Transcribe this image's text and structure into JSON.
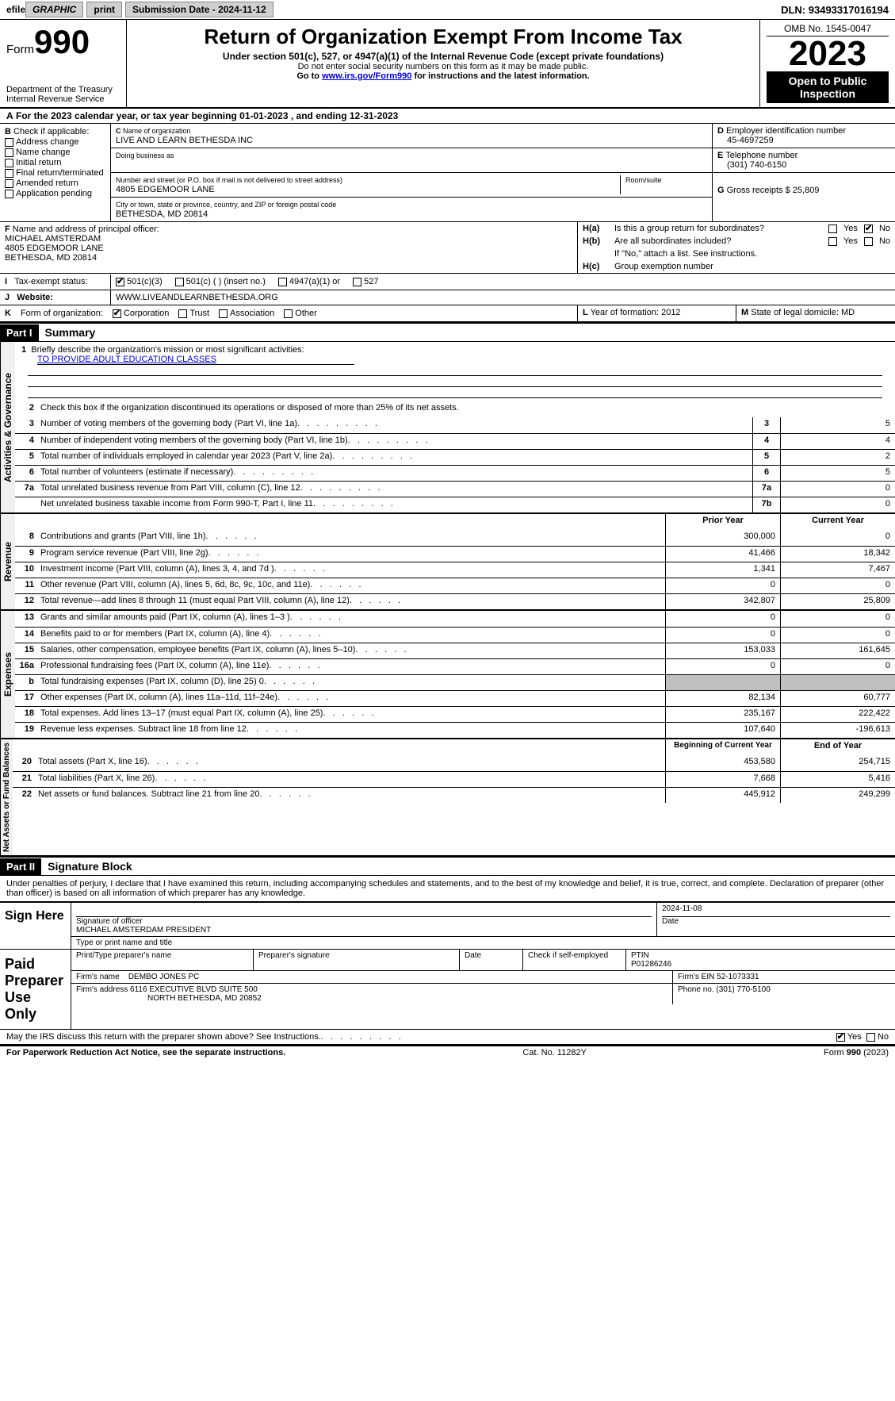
{
  "top": {
    "efile_prefix": "efile",
    "graphic_btn": "GRAPHIC",
    "print_btn": "print",
    "submission_label": "Submission Date - ",
    "submission_date": "2024-11-12",
    "dln_label": "DLN: ",
    "dln": "93493317016194"
  },
  "header": {
    "form_prefix": "Form",
    "form_number": "990",
    "dept": "Department of the Treasury\nInternal Revenue Service",
    "title": "Return of Organization Exempt From Income Tax",
    "subtitle": "Under section 501(c), 527, or 4947(a)(1) of the Internal Revenue Code (except private foundations)",
    "note1": "Do not enter social security numbers on this form as it may be made public.",
    "note2_pre": "Go to ",
    "note2_link": "www.irs.gov/Form990",
    "note2_post": " for instructions and the latest information.",
    "omb": "OMB No. 1545-0047",
    "year": "2023",
    "open_public": "Open to Public Inspection"
  },
  "line_a": {
    "text_pre": "For the 2023 calendar year, or tax year beginning ",
    "begin": "01-01-2023",
    "mid": "   , and ending ",
    "end": "12-31-2023"
  },
  "box_b": {
    "label": "Check if applicable:",
    "items": [
      "Address change",
      "Name change",
      "Initial return",
      "Final return/terminated",
      "Amended return",
      "Application pending"
    ],
    "prefix": "B"
  },
  "box_c": {
    "name_label": "Name of organization",
    "name": "LIVE AND LEARN BETHESDA INC",
    "dba_label": "Doing business as",
    "dba": "",
    "addr_label": "Number and street (or P.O. box if mail is not delivered to street address)",
    "addr": "4805 EDGEMOOR LANE",
    "room_label": "Room/suite",
    "room": "",
    "city_label": "City or town, state or province, country, and ZIP or foreign postal code",
    "city": "BETHESDA, MD  20814",
    "prefix": "C"
  },
  "box_d": {
    "label": "Employer identification number",
    "value": "45-4697259",
    "prefix": "D"
  },
  "box_e": {
    "label": "Telephone number",
    "value": "(301) 740-6150",
    "prefix": "E"
  },
  "box_g": {
    "label": "Gross receipts $",
    "value": "25,809",
    "prefix": "G"
  },
  "box_f": {
    "label": "Name and address of principal officer:",
    "name": "MICHAEL AMSTERDAM",
    "addr1": "4805 EDGEMOOR LANE",
    "addr2": "BETHESDA, MD  20814",
    "prefix": "F"
  },
  "box_h": {
    "a_label": "Is this a group return for subordinates?",
    "a_yes": false,
    "a_no": true,
    "b_label": "Are all subordinates included?",
    "b_yes": false,
    "b_no": false,
    "b_note": "If \"No,\" attach a list. See instructions.",
    "c_label": "Group exemption number",
    "c_value": ""
  },
  "box_i": {
    "label": "Tax-exempt status:",
    "opt_501c3": "501(c)(3)",
    "opt_501c": "501(c) (  ) (insert no.)",
    "opt_4947": "4947(a)(1) or",
    "opt_527": "527",
    "checked_501c3": true
  },
  "box_j": {
    "label": "Website:",
    "value": "WWW.LIVEANDLEARNBETHESDA.ORG"
  },
  "box_k": {
    "label": "Form of organization:",
    "corp": "Corporation",
    "trust": "Trust",
    "assoc": "Association",
    "other": "Other",
    "checked_corp": true
  },
  "box_l": {
    "label": "Year of formation:",
    "value": "2012"
  },
  "box_m": {
    "label": "State of legal domicile:",
    "value": "MD"
  },
  "part1": {
    "header": "Part I",
    "title": "Summary",
    "line1_label": "Briefly describe the organization's mission or most significant activities:",
    "line1_value": "TO PROVIDE ADULT EDUCATION CLASSES",
    "line2": "Check this box      if the organization discontinued its operations or disposed of more than 25% of its net assets.",
    "rows_gov": [
      {
        "n": "3",
        "t": "Number of voting members of the governing body (Part VI, line 1a)",
        "box": "3",
        "v": "5"
      },
      {
        "n": "4",
        "t": "Number of independent voting members of the governing body (Part VI, line 1b)",
        "box": "4",
        "v": "4"
      },
      {
        "n": "5",
        "t": "Total number of individuals employed in calendar year 2023 (Part V, line 2a)",
        "box": "5",
        "v": "2"
      },
      {
        "n": "6",
        "t": "Total number of volunteers (estimate if necessary)",
        "box": "6",
        "v": "5"
      },
      {
        "n": "7a",
        "t": "Total unrelated business revenue from Part VIII, column (C), line 12",
        "box": "7a",
        "v": "0"
      },
      {
        "n": "",
        "t": "Net unrelated business taxable income from Form 990-T, Part I, line 11",
        "box": "7b",
        "v": "0"
      }
    ],
    "col_prior": "Prior Year",
    "col_current": "Current Year",
    "rows_rev": [
      {
        "n": "8",
        "t": "Contributions and grants (Part VIII, line 1h)",
        "p": "300,000",
        "c": "0"
      },
      {
        "n": "9",
        "t": "Program service revenue (Part VIII, line 2g)",
        "p": "41,466",
        "c": "18,342"
      },
      {
        "n": "10",
        "t": "Investment income (Part VIII, column (A), lines 3, 4, and 7d )",
        "p": "1,341",
        "c": "7,467"
      },
      {
        "n": "11",
        "t": "Other revenue (Part VIII, column (A), lines 5, 6d, 8c, 9c, 10c, and 11e)",
        "p": "0",
        "c": "0"
      },
      {
        "n": "12",
        "t": "Total revenue—add lines 8 through 11 (must equal Part VIII, column (A), line 12)",
        "p": "342,807",
        "c": "25,809"
      }
    ],
    "rows_exp": [
      {
        "n": "13",
        "t": "Grants and similar amounts paid (Part IX, column (A), lines 1–3 )",
        "p": "0",
        "c": "0"
      },
      {
        "n": "14",
        "t": "Benefits paid to or for members (Part IX, column (A), line 4)",
        "p": "0",
        "c": "0"
      },
      {
        "n": "15",
        "t": "Salaries, other compensation, employee benefits (Part IX, column (A), lines 5–10)",
        "p": "153,033",
        "c": "161,645"
      },
      {
        "n": "16a",
        "t": "Professional fundraising fees (Part IX, column (A), line 11e)",
        "p": "0",
        "c": "0"
      },
      {
        "n": "b",
        "t": "Total fundraising expenses (Part IX, column (D), line 25) 0",
        "p": "SHADE",
        "c": "SHADE"
      },
      {
        "n": "17",
        "t": "Other expenses (Part IX, column (A), lines 11a–11d, 11f–24e)",
        "p": "82,134",
        "c": "60,777"
      },
      {
        "n": "18",
        "t": "Total expenses. Add lines 13–17 (must equal Part IX, column (A), line 25)",
        "p": "235,167",
        "c": "222,422"
      },
      {
        "n": "19",
        "t": "Revenue less expenses. Subtract line 18 from line 12",
        "p": "107,640",
        "c": "-196,613"
      }
    ],
    "col_begin": "Beginning of Current Year",
    "col_end": "End of Year",
    "rows_net": [
      {
        "n": "20",
        "t": "Total assets (Part X, line 16)",
        "p": "453,580",
        "c": "254,715"
      },
      {
        "n": "21",
        "t": "Total liabilities (Part X, line 26)",
        "p": "7,668",
        "c": "5,416"
      },
      {
        "n": "22",
        "t": "Net assets or fund balances. Subtract line 21 from line 20",
        "p": "445,912",
        "c": "249,299"
      }
    ],
    "vert_gov": "Activities & Governance",
    "vert_rev": "Revenue",
    "vert_exp": "Expenses",
    "vert_net": "Net Assets or Fund Balances"
  },
  "part2": {
    "header": "Part II",
    "title": "Signature Block",
    "declaration": "Under penalties of perjury, I declare that I have examined this return, including accompanying schedules and statements, and to the best of my knowledge and belief, it is true, correct, and complete. Declaration of preparer (other than officer) is based on all information of which preparer has any knowledge."
  },
  "sign": {
    "left": "Sign Here",
    "sig_label": "Signature of officer",
    "date_label": "Date",
    "date": "2024-11-08",
    "officer": "MICHAEL AMSTERDAM  PRESIDENT",
    "type_label": "Type or print name and title"
  },
  "preparer": {
    "left": "Paid Preparer Use Only",
    "name_label": "Print/Type preparer's name",
    "name": "",
    "sig_label": "Preparer's signature",
    "date_label": "Date",
    "check_label": "Check      if self-employed",
    "ptin_label": "PTIN",
    "ptin": "P01286246",
    "firm_name_label": "Firm's name",
    "firm_name": "DEMBO JONES PC",
    "firm_ein_label": "Firm's EIN",
    "firm_ein": "52-1073331",
    "firm_addr_label": "Firm's address",
    "firm_addr1": "6116 EXECUTIVE BLVD SUITE 500",
    "firm_addr2": "NORTH BETHESDA, MD  20852",
    "phone_label": "Phone no.",
    "phone": "(301) 770-5100"
  },
  "discuss": {
    "text": "May the IRS discuss this return with the preparer shown above? See Instructions.",
    "yes": true,
    "no": false,
    "yes_label": "Yes",
    "no_label": "No"
  },
  "footer": {
    "left": "For Paperwork Reduction Act Notice, see the separate instructions.",
    "mid": "Cat. No. 11282Y",
    "right_pre": "Form ",
    "right_form": "990",
    "right_post": " (2023)"
  }
}
